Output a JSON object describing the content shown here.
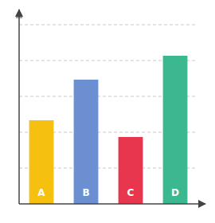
{
  "chart_data": {
    "type": "bar",
    "categories": [
      "A",
      "B",
      "C",
      "D"
    ],
    "values": [
      3.5,
      5.2,
      2.8,
      6.2
    ],
    "colors": [
      "#F5C010",
      "#6B8FD0",
      "#E8364F",
      "#3CB890"
    ],
    "ylim": [
      0,
      7.8
    ],
    "yticks": [
      1.5,
      3.0,
      4.5,
      6.0,
      7.5
    ],
    "grid": true,
    "tick_labels": false
  }
}
